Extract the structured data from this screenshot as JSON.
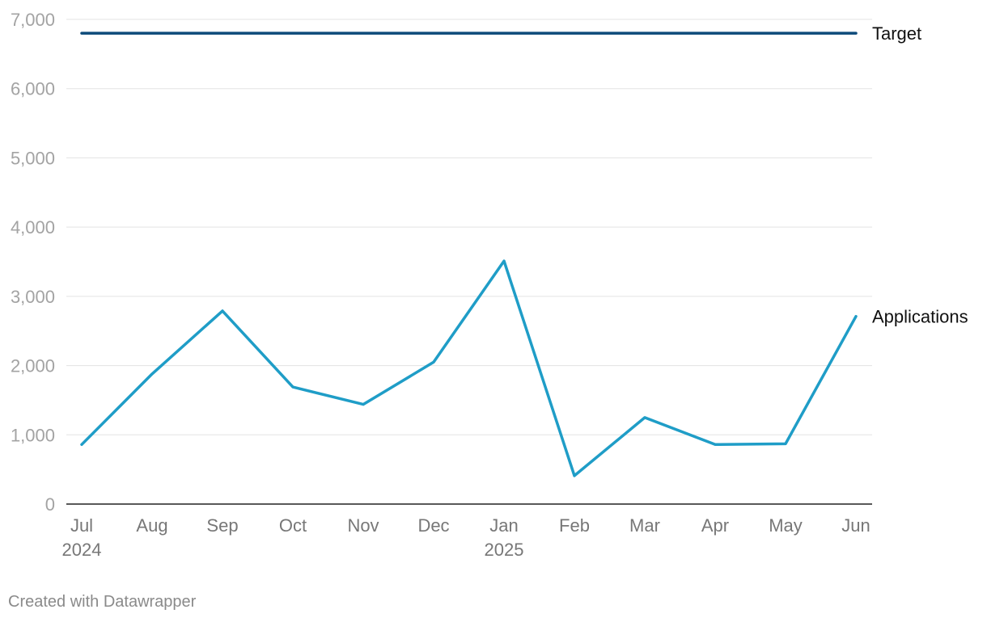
{
  "chart_data": {
    "type": "line",
    "categories": [
      "Jul",
      "Aug",
      "Sep",
      "Oct",
      "Nov",
      "Dec",
      "Jan",
      "Feb",
      "Mar",
      "Apr",
      "May",
      "Jun"
    ],
    "year_labels": [
      "2024",
      "",
      "",
      "",
      "",
      "",
      "2025",
      "",
      "",
      "",
      "",
      ""
    ],
    "ylim": [
      0,
      7000
    ],
    "yticks": [
      0,
      1000,
      2000,
      3000,
      4000,
      5000,
      6000,
      7000
    ],
    "ytick_labels": [
      "0",
      "1,000",
      "2,000",
      "3,000",
      "4,000",
      "5,000",
      "6,000",
      "7,000"
    ],
    "grid": true,
    "series": [
      {
        "name": "Target",
        "color": "#0d4a7a",
        "values": [
          6800,
          6800,
          6800,
          6800,
          6800,
          6800,
          6800,
          6800,
          6800,
          6800,
          6800,
          6800
        ]
      },
      {
        "name": "Applications",
        "color": "#1f9dc7",
        "values": [
          860,
          1880,
          2790,
          1690,
          1440,
          2050,
          3510,
          410,
          1250,
          860,
          870,
          2710
        ]
      }
    ]
  },
  "credit": "Created with Datawrapper"
}
